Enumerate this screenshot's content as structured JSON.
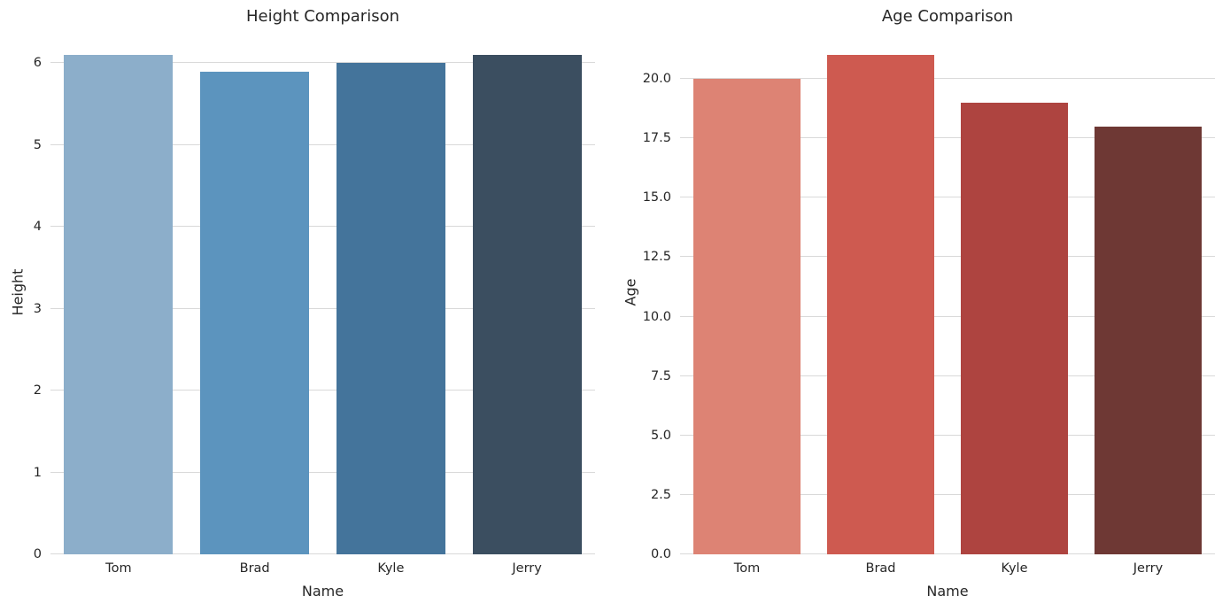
{
  "figure": {
    "background": "#ffffff",
    "grid_color": "#d9d9d9",
    "text_color": "#262626"
  },
  "chart_data": [
    {
      "type": "bar",
      "title": "Height Comparison",
      "xlabel": "Name",
      "ylabel": "Height",
      "categories": [
        "Tom",
        "Brad",
        "Kyle",
        "Jerry"
      ],
      "values": [
        6.1,
        5.9,
        6.0,
        6.1
      ],
      "bar_colors": [
        "#8CAECA",
        "#5C94BE",
        "#44749B",
        "#3B4E60"
      ],
      "yticks": [
        0,
        1,
        2,
        3,
        4,
        5,
        6
      ],
      "ytick_labels": [
        "0",
        "1",
        "2",
        "3",
        "4",
        "5",
        "6"
      ],
      "ylim": [
        0,
        6.405
      ],
      "grid": true,
      "legend": null
    },
    {
      "type": "bar",
      "title": "Age Comparison",
      "xlabel": "Name",
      "ylabel": "Age",
      "categories": [
        "Tom",
        "Brad",
        "Kyle",
        "Jerry"
      ],
      "values": [
        20,
        21,
        19,
        18
      ],
      "bar_colors": [
        "#DD8374",
        "#CE5A50",
        "#AE4440",
        "#6E3834"
      ],
      "yticks": [
        0,
        2.5,
        5,
        7.5,
        10,
        12.5,
        15,
        17.5,
        20
      ],
      "ytick_labels": [
        "0.0",
        "2.5",
        "5.0",
        "7.5",
        "10.0",
        "12.5",
        "15.0",
        "17.5",
        "20.0"
      ],
      "ylim": [
        0,
        22.05
      ],
      "grid": true,
      "legend": null
    }
  ]
}
